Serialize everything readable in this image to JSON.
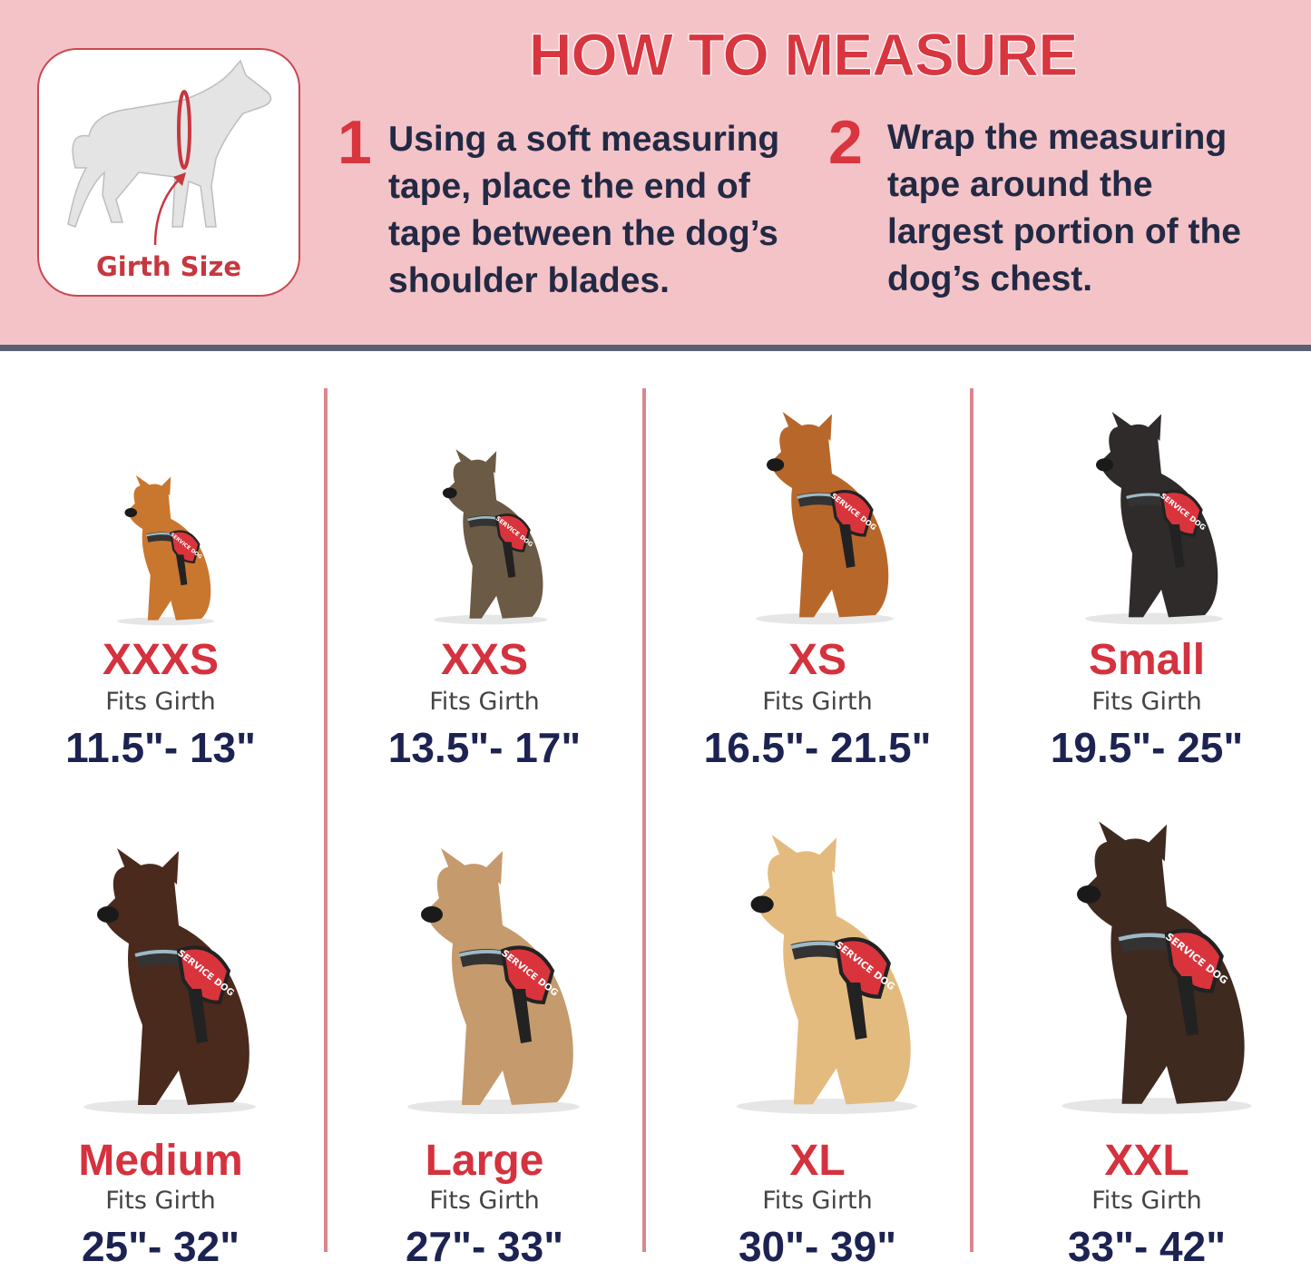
{
  "header": {
    "title": "HOW TO MEASURE",
    "girth_label": "Girth Size",
    "steps": [
      {
        "number": "1",
        "text": "Using a soft measuring\ntape, place the end of\ntape between the dog’s\nshoulder blades."
      },
      {
        "number": "2",
        "text": "Wrap the measuring\ntape around the\nlargest portion of the\ndog’s chest."
      }
    ]
  },
  "colors": {
    "accent": "#d4323e",
    "navy": "#1c2352",
    "header_bg": "#f4c3c7",
    "band": "#596074"
  },
  "sizes": [
    {
      "size": "XXXS",
      "fits": "Fits Girth",
      "range": "11.5\"- 13\"",
      "dog_color": "#c9762f"
    },
    {
      "size": "XXS",
      "fits": "Fits Girth",
      "range": "13.5\"- 17\"",
      "dog_color": "#6b5a45"
    },
    {
      "size": "XS",
      "fits": "Fits Girth",
      "range": "16.5\"- 21.5\"",
      "dog_color": "#b8672a"
    },
    {
      "size": "Small",
      "fits": "Fits Girth",
      "range": "19.5\"- 25\"",
      "dog_color": "#2f2b2b"
    },
    {
      "size": "Medium",
      "fits": "Fits Girth",
      "range": "25\"- 32\"",
      "dog_color": "#4a2a1d"
    },
    {
      "size": "Large",
      "fits": "Fits Girth",
      "range": "27\"- 33\"",
      "dog_color": "#c59a6c"
    },
    {
      "size": "XL",
      "fits": "Fits Girth",
      "range": "30\"- 39\"",
      "dog_color": "#e4bb7e"
    },
    {
      "size": "XXL",
      "fits": "Fits Girth",
      "range": "33\"- 42\"",
      "dog_color": "#3f2a20"
    }
  ],
  "harness_text": "SERVICE DOG"
}
